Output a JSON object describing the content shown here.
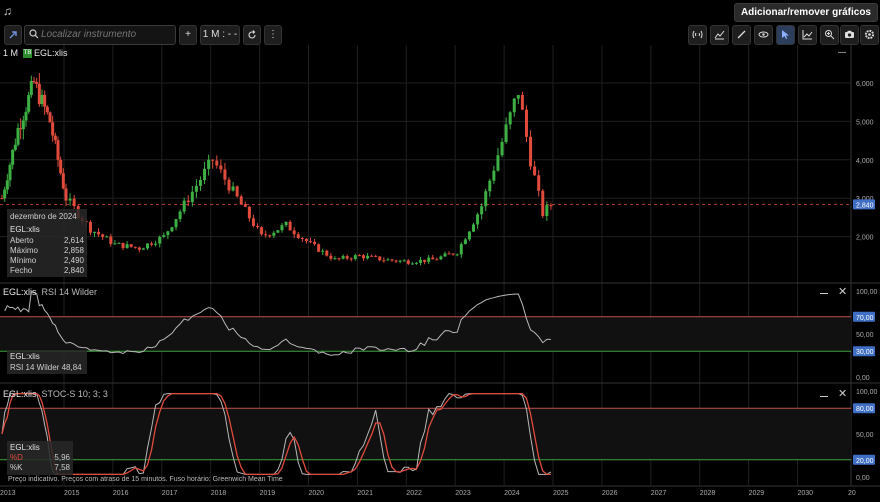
{
  "topbar": {
    "add_remove_label": "Adicionar/remover gráficos"
  },
  "toolbar": {
    "search_placeholder": "Localizar instrumento",
    "add_label": "+",
    "interval_label": "1 M : - -",
    "icons": [
      "link-icon",
      "search-icon",
      "plus-icon",
      "refresh-icon",
      "more-vert-icon",
      "signal-icon",
      "draw-icon",
      "line-tool-icon",
      "eye-icon",
      "cursor-icon",
      "trend-icon",
      "zoom-icon",
      "camera-icon",
      "gear-icon"
    ]
  },
  "main": {
    "interval": "1 M",
    "symbol_badge": "TB",
    "symbol": "EGL:xlis",
    "last_price": "2,840",
    "yticks": [
      "6,000",
      "5,000",
      "4,000",
      "3,000",
      "2,000"
    ],
    "tooltip": {
      "date": "dezembro de 2024",
      "symbol": "EGL:xlis",
      "rows": [
        {
          "label": "Aberto",
          "value": "2,614"
        },
        {
          "label": "Máximo",
          "value": "2,858"
        },
        {
          "label": "Mínimo",
          "value": "2,490"
        },
        {
          "label": "Fecho",
          "value": "2,840"
        }
      ]
    }
  },
  "rsi": {
    "title_symbol": "EGL:xlis",
    "title_rest": "RSI 14 Wilder",
    "yticks": [
      "100,00",
      "70,00",
      "50,00",
      "30,00",
      "0,00"
    ],
    "upper_badge": "70,00",
    "lower_badge": "30,00",
    "info_symbol": "EGL:xlis",
    "info_label": "RSI 14 Wilder",
    "info_value": "48,84"
  },
  "stoch": {
    "title_symbol": "EGL:xlis",
    "title_rest": "STOC-S 10; 3; 3",
    "yticks": [
      "100,00",
      "80,00",
      "50,00",
      "20,00",
      "0,00"
    ],
    "upper_badge": "80,00",
    "lower_badge": "20,00",
    "info_symbol": "EGL:xlis",
    "d_label": "%D",
    "d_value": "5,96",
    "k_label": "%K",
    "k_value": "7,58"
  },
  "xaxis": {
    "labels": [
      "2013",
      "2015",
      "2016",
      "2017",
      "2018",
      "2019",
      "2020",
      "2021",
      "2022",
      "2023",
      "2024",
      "2025",
      "2026",
      "2027",
      "2028",
      "2029",
      "2030",
      "20"
    ]
  },
  "footer": "Preço indicativo. Preços com atraso de 15 minutos.  Fuso horário: Greenwich Mean Time",
  "colors": {
    "up": "#3cb043",
    "down": "#e04b3c",
    "rsi_line": "#b8b8b8",
    "badge": "#3f6fc4",
    "upper_line": "#c0504d",
    "lower_line": "#3f9f3f"
  },
  "chart_data": {
    "type": "candlestick",
    "interval": "1 M",
    "symbol": "EGL:xlis",
    "x_labels": [
      "2013",
      "2015",
      "2016",
      "2017",
      "2018",
      "2019",
      "2020",
      "2021",
      "2022",
      "2023",
      "2024",
      "2025",
      "2026",
      "2027",
      "2028",
      "2029",
      "2030"
    ],
    "ylim": [
      1000,
      6500
    ],
    "approx_closes": [
      {
        "date": "2013-01",
        "close": 3.0
      },
      {
        "date": "2013-07",
        "close": 4.8
      },
      {
        "date": "2014-01",
        "close": 6.0
      },
      {
        "date": "2014-07",
        "close": 5.0
      },
      {
        "date": "2015-01",
        "close": 3.0
      },
      {
        "date": "2015-07",
        "close": 2.2
      },
      {
        "date": "2016-01",
        "close": 1.8
      },
      {
        "date": "2016-07",
        "close": 1.7
      },
      {
        "date": "2017-01",
        "close": 2.0
      },
      {
        "date": "2017-07",
        "close": 3.0
      },
      {
        "date": "2018-01",
        "close": 4.0
      },
      {
        "date": "2018-07",
        "close": 3.0
      },
      {
        "date": "2019-01",
        "close": 2.0
      },
      {
        "date": "2019-07",
        "close": 2.3
      },
      {
        "date": "2020-01",
        "close": 1.8
      },
      {
        "date": "2020-07",
        "close": 1.4
      },
      {
        "date": "2021-01",
        "close": 1.5
      },
      {
        "date": "2021-07",
        "close": 1.4
      },
      {
        "date": "2022-01",
        "close": 1.35
      },
      {
        "date": "2022-07",
        "close": 1.4
      },
      {
        "date": "2023-01",
        "close": 1.6
      },
      {
        "date": "2023-07",
        "close": 2.8
      },
      {
        "date": "2024-01",
        "close": 4.8
      },
      {
        "date": "2024-04",
        "close": 5.8
      },
      {
        "date": "2024-07",
        "close": 4.0
      },
      {
        "date": "2024-10",
        "close": 2.6
      },
      {
        "date": "2024-12",
        "close": 2.84
      }
    ],
    "rsi_levels": [
      30,
      70
    ],
    "stoch_levels": [
      20,
      80
    ]
  }
}
